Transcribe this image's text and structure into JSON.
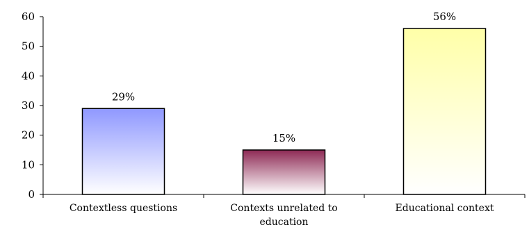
{
  "chart_data": {
    "type": "bar",
    "categories": [
      [
        "Contextless questions"
      ],
      [
        "Contexts unrelated to",
        "education"
      ],
      [
        "Educational context"
      ]
    ],
    "values": [
      29,
      15,
      56
    ],
    "data_labels": [
      "29%",
      "15%",
      "56%"
    ],
    "ylim": [
      0,
      60
    ],
    "yticks": [
      "0",
      "10",
      "20",
      "30",
      "40",
      "50",
      "60"
    ],
    "grid": false,
    "legend": "none",
    "colors": {
      "bar_0_top": "#8f98ff",
      "bar_0_bottom": "#ffffff",
      "bar_1_top": "#8e2a55",
      "bar_1_bottom": "#ffffff",
      "bar_2_top": "#ffffa8",
      "bar_2_bottom": "#ffffff",
      "axis": "#000000"
    }
  }
}
